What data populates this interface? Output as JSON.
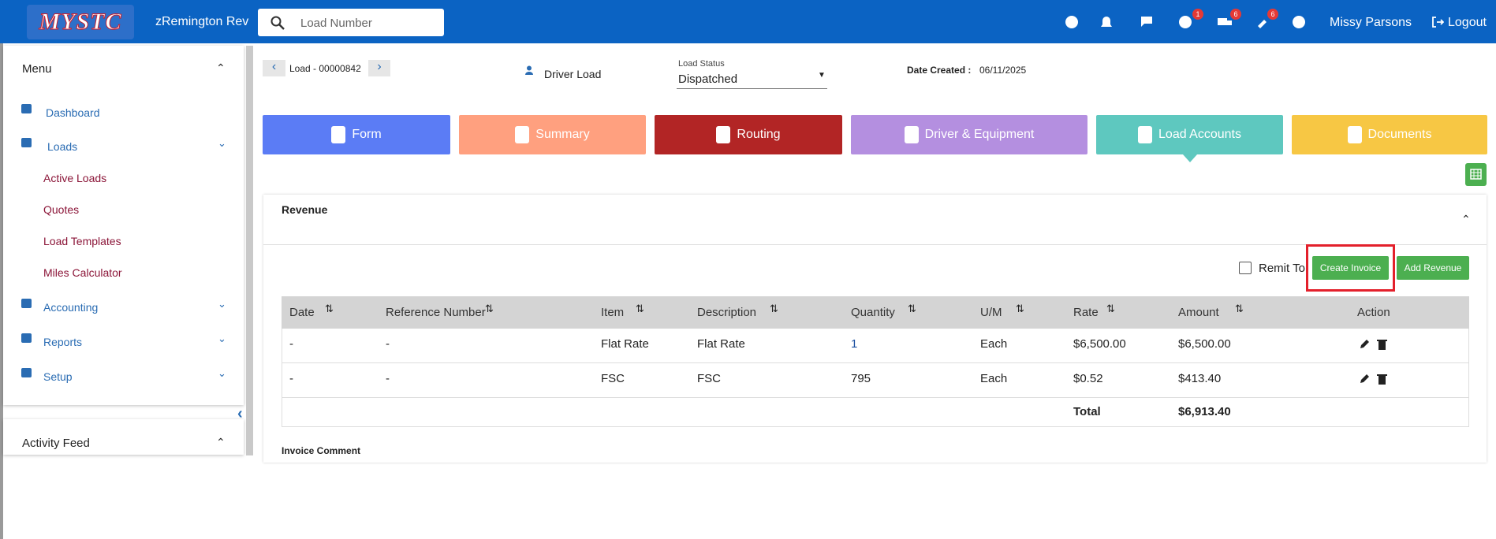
{
  "header": {
    "logo": "MYSTC",
    "company": "zRemington Rev",
    "search_placeholder": "Load Number",
    "badges": [
      "1",
      "6",
      "6"
    ],
    "user": "Missy Parsons",
    "logout": "Logout"
  },
  "sidebar": {
    "menu_title": "Menu",
    "items": [
      "Dashboard",
      "Loads",
      "Accounting",
      "Reports",
      "Setup"
    ],
    "loads_sub": [
      "Active Loads",
      "Quotes",
      "Load Templates",
      "Miles Calculator"
    ],
    "activity_feed": "Activity Feed"
  },
  "load": {
    "number": "Load - 00000842",
    "driver_load": "Driver Load",
    "status_label": "Load Status",
    "status": "Dispatched",
    "date_created_label": "Date Created :",
    "date_created": "06/11/2025"
  },
  "tabs": [
    "Form",
    "Summary",
    "Routing",
    "Driver & Equipment",
    "Load Accounts",
    "Documents"
  ],
  "revenue": {
    "title": "Revenue",
    "remit_to": "Remit To",
    "create_invoice": "Create Invoice",
    "add_revenue": "Add Revenue",
    "invoice_comment": "Invoice Comment"
  },
  "table": {
    "columns": [
      "Date",
      "Reference Number",
      "Item",
      "Description",
      "Quantity",
      "U/M",
      "Rate",
      "Amount",
      "Action"
    ],
    "rows": [
      [
        "-",
        "-",
        "Flat Rate",
        "Flat Rate",
        "1",
        "Each",
        "$6,500.00",
        "$6,500.00"
      ],
      [
        "-",
        "-",
        "FSC",
        "FSC",
        "795",
        "Each",
        "$0.52",
        "$413.40"
      ]
    ],
    "total_label": "Total",
    "total": "$6,913.40"
  }
}
